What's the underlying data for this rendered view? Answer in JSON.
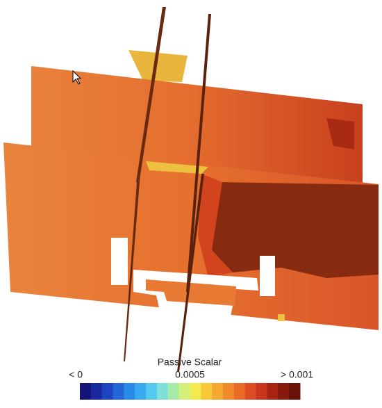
{
  "legend": {
    "title": "Passive Scalar",
    "range": [
      0,
      0.001
    ],
    "ticks": [
      {
        "value": 0,
        "label": "< 0"
      },
      {
        "value": 0.0005,
        "label": "0.0005"
      },
      {
        "value": 0.001,
        "label": "> 0.001"
      }
    ],
    "colors": [
      "#14147a",
      "#1a2a9e",
      "#1d45c0",
      "#2266d8",
      "#2a8ae8",
      "#3aaaf0",
      "#55c8f0",
      "#7ee0d8",
      "#a6eca8",
      "#d2f07a",
      "#f2ea50",
      "#f8c838",
      "#f5a830",
      "#f08a2c",
      "#ea6a28",
      "#dd4c22",
      "#c8341c",
      "#a82414",
      "#861a0e",
      "#6a1208"
    ]
  }
}
